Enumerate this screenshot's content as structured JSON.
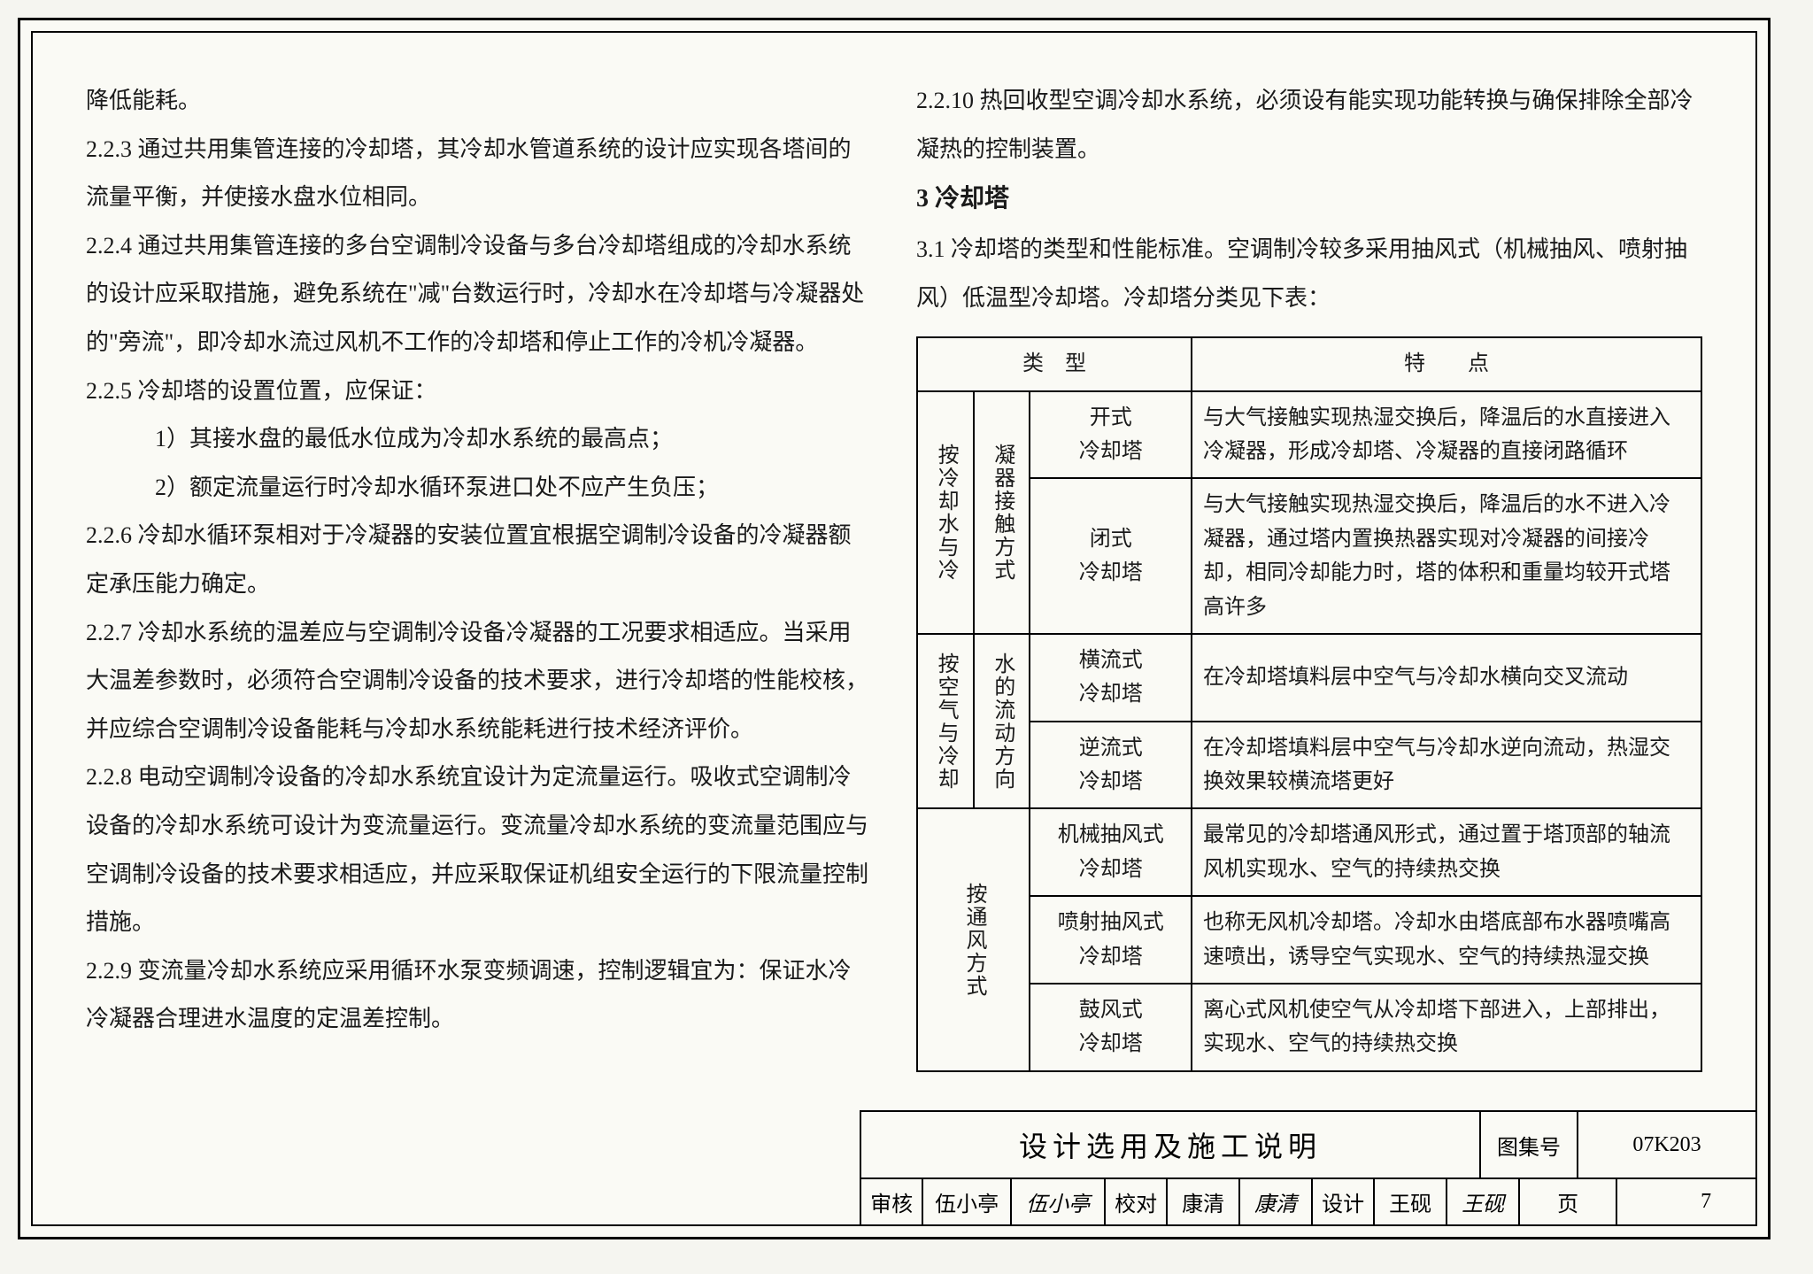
{
  "left": {
    "p0": "降低能耗。",
    "p1": "2.2.3 通过共用集管连接的冷却塔，其冷却水管道系统的设计应实现各塔间的流量平衡，并使接水盘水位相同。",
    "p2": "2.2.4 通过共用集管连接的多台空调制冷设备与多台冷却塔组成的冷却水系统的设计应采取措施，避免系统在\"减\"台数运行时，冷却水在冷却塔与冷凝器处的\"旁流\"，即冷却水流过风机不工作的冷却塔和停止工作的冷机冷凝器。",
    "p3": "2.2.5 冷却塔的设置位置，应保证：",
    "p3a": "1）其接水盘的最低水位成为冷却水系统的最高点；",
    "p3b": "2）额定流量运行时冷却水循环泵进口处不应产生负压；",
    "p4": "2.2.6 冷却水循环泵相对于冷凝器的安装位置宜根据空调制冷设备的冷凝器额定承压能力确定。",
    "p5": "2.2.7 冷却水系统的温差应与空调制冷设备冷凝器的工况要求相适应。当采用大温差参数时，必须符合空调制冷设备的技术要求，进行冷却塔的性能校核，并应综合空调制冷设备能耗与冷却水系统能耗进行技术经济评价。",
    "p6": "2.2.8 电动空调制冷设备的冷却水系统宜设计为定流量运行。吸收式空调制冷设备的冷却水系统可设计为变流量运行。变流量冷却水系统的变流量范围应与空调制冷设备的技术要求相适应，并应采取保证机组安全运行的下限流量控制措施。",
    "p7": "2.2.9 变流量冷却水系统应采用循环水泵变频调速，控制逻辑宜为：保证水冷冷凝器合理进水温度的定温差控制。"
  },
  "right": {
    "p0": "2.2.10 热回收型空调冷却水系统，必须设有能实现功能转换与确保排除全部冷凝热的控制装置。",
    "h3": "3 冷却塔",
    "p1": "3.1 冷却塔的类型和性能标准。空调制冷较多采用抽风式（机械抽风、喷射抽风）低温型冷却塔。冷却塔分类见下表："
  },
  "table": {
    "head_type": "类　型",
    "head_feat": "特　　点",
    "groups": [
      {
        "group_label": "按冷却水与冷凝器接触方式",
        "rows": [
          {
            "sub": "开式\n冷却塔",
            "feat": "与大气接触实现热湿交换后，降温后的水直接进入冷凝器，形成冷却塔、冷凝器的直接闭路循环"
          },
          {
            "sub": "闭式\n冷却塔",
            "feat": "与大气接触实现热湿交换后，降温后的水不进入冷凝器，通过塔内置换热器实现对冷凝器的间接冷却，相同冷却能力时，塔的体积和重量均较开式塔高许多"
          }
        ]
      },
      {
        "group_label": "按空气与冷却水的流动方向",
        "rows": [
          {
            "sub": "横流式\n冷却塔",
            "feat": "在冷却塔填料层中空气与冷却水横向交叉流动"
          },
          {
            "sub": "逆流式\n冷却塔",
            "feat": "在冷却塔填料层中空气与冷却水逆向流动，热湿交换效果较横流塔更好"
          }
        ]
      },
      {
        "group_label": "按通风方式",
        "rows": [
          {
            "sub": "机械抽风式\n冷却塔",
            "feat": "最常见的冷却塔通风形式，通过置于塔顶部的轴流风机实现水、空气的持续热交换"
          },
          {
            "sub": "喷射抽风式\n冷却塔",
            "feat": "也称无风机冷却塔。冷却水由塔底部布水器喷嘴高速喷出，诱导空气实现水、空气的持续热湿交换"
          },
          {
            "sub": "鼓风式\n冷却塔",
            "feat": "离心式风机使空气从冷却塔下部进入，上部排出，实现水、空气的持续热交换"
          }
        ]
      }
    ]
  },
  "footer": {
    "title": "设计选用及施工说明",
    "coll_label": "图集号",
    "coll_code": "07K203",
    "audit_label": "审核",
    "audit_name": "伍小亭",
    "audit_sig": "伍小亭",
    "proof_label": "校对",
    "proof_name": "康清",
    "proof_sig": "康清",
    "design_label": "设计",
    "design_name": "王砚",
    "design_sig": "王砚",
    "page_label": "页",
    "page_num": "7"
  }
}
